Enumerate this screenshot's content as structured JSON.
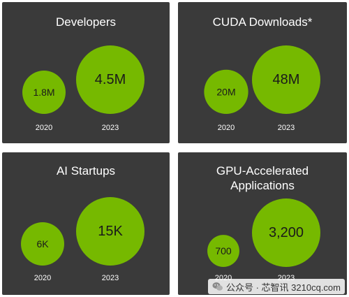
{
  "colors": {
    "background": "#ffffff",
    "panel": "#3a3a3a",
    "bubble": "#76b900",
    "bubble_text": "#1a1a1a",
    "title_text": "#ffffff",
    "axis_text": "#ffffff"
  },
  "chart_data": [
    {
      "type": "bubble",
      "title": "Developers",
      "categories": [
        "2020",
        "2023"
      ],
      "labels": [
        "1.8M",
        "4.5M"
      ],
      "values": [
        1800000,
        4500000
      ]
    },
    {
      "type": "bubble",
      "title": "CUDA Downloads*",
      "categories": [
        "2020",
        "2023"
      ],
      "labels": [
        "20M",
        "48M"
      ],
      "values": [
        20000000,
        48000000
      ]
    },
    {
      "type": "bubble",
      "title": "AI Startups",
      "categories": [
        "2020",
        "2023"
      ],
      "labels": [
        "6K",
        "15K"
      ],
      "values": [
        6000,
        15000
      ]
    },
    {
      "type": "bubble",
      "title": "GPU-Accelerated\nApplications",
      "categories": [
        "2020",
        "2023"
      ],
      "labels": [
        "700",
        "3,200"
      ],
      "values": [
        700,
        3200
      ]
    }
  ],
  "watermark": {
    "icon": "wechat-icon",
    "text": "公众号 · 芯智讯  3210cq.com"
  }
}
